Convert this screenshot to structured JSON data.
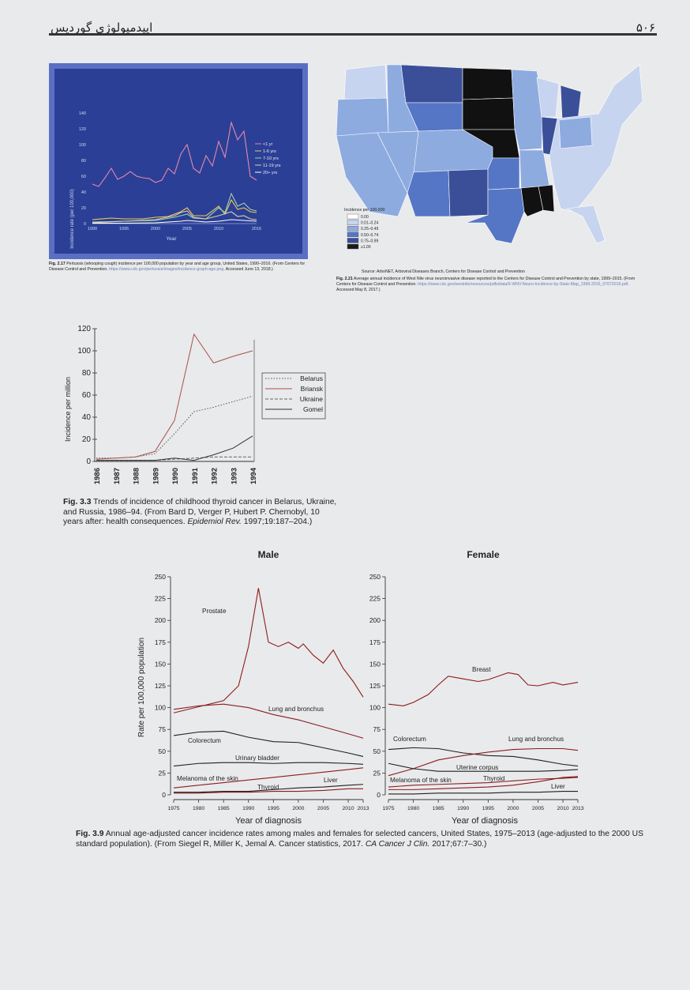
{
  "header": {
    "title": "اپیدمیولوژی گوردیس",
    "page_number": "۵۰۶"
  },
  "fig217": {
    "caption_label": "Fig. 2.17",
    "caption_text": "Pertussis (whooping cough) incidence per 100,000 population by year and age group, United States, 1990–2016. (From Centers for Disease Control and Prevention.",
    "caption_url": "https://www.cdc.gov/pertussis/images/incidence-graph-age.png",
    "caption_accessed": ". Accessed June 13, 2018.)",
    "ylabel": "Incidence rate (per 100,000)",
    "xlabel": "Year",
    "colors": {
      "bg": "#2b3f96",
      "frame": "#5a6fc4"
    },
    "chart_data": {
      "type": "line",
      "title": "",
      "xlabel": "Year",
      "ylabel": "Incidence rate (per 100,000)",
      "xlim": [
        1990,
        2016
      ],
      "ylim": [
        0,
        140
      ],
      "y_ticks": [
        0,
        20,
        40,
        60,
        80,
        100,
        120,
        140
      ],
      "x_ticks": [
        1990,
        1995,
        2000,
        2005,
        2010,
        2016
      ],
      "legend_position": "right",
      "series": [
        {
          "name": "<1 yr",
          "color": "#e28aa8",
          "x": [
            1990,
            1991,
            1992,
            1993,
            1994,
            1995,
            1996,
            1997,
            1998,
            1999,
            2000,
            2001,
            2002,
            2003,
            2004,
            2005,
            2006,
            2007,
            2008,
            2009,
            2010,
            2011,
            2012,
            2013,
            2014,
            2015,
            2016
          ],
          "y": [
            50,
            47,
            58,
            70,
            56,
            60,
            66,
            60,
            58,
            57,
            52,
            55,
            70,
            63,
            88,
            100,
            70,
            64,
            86,
            73,
            104,
            84,
            128,
            106,
            117,
            60,
            55
          ]
        },
        {
          "name": "1-6 yrs",
          "color": "#f0c85a",
          "x": [
            1990,
            1993,
            1995,
            1998,
            2000,
            2002,
            2004,
            2005,
            2006,
            2008,
            2010,
            2011,
            2012,
            2013,
            2014,
            2015,
            2016
          ],
          "y": [
            5,
            7,
            6,
            6,
            8,
            9,
            15,
            20,
            10,
            10,
            22,
            12,
            30,
            18,
            20,
            15,
            14
          ]
        },
        {
          "name": "7-10 yrs",
          "color": "#9ed3a8",
          "x": [
            1990,
            1995,
            2000,
            2003,
            2004,
            2005,
            2006,
            2008,
            2010,
            2011,
            2012,
            2013,
            2014,
            2015,
            2016
          ],
          "y": [
            2,
            3,
            4,
            8,
            10,
            12,
            7,
            6,
            20,
            14,
            38,
            22,
            26,
            18,
            16
          ]
        },
        {
          "name": "11-19 yrs",
          "color": "#d8d0a0",
          "x": [
            1990,
            1995,
            2000,
            2003,
            2004,
            2005,
            2006,
            2008,
            2010,
            2012,
            2013,
            2014,
            2015,
            2016
          ],
          "y": [
            1,
            3,
            5,
            10,
            14,
            16,
            8,
            6,
            10,
            15,
            9,
            10,
            6,
            5
          ]
        },
        {
          "name": "20+ yrs",
          "color": "#ffffff",
          "x": [
            1990,
            1995,
            2000,
            2004,
            2005,
            2008,
            2010,
            2012,
            2014,
            2016
          ],
          "y": [
            0.5,
            0.5,
            1,
            3,
            4,
            2,
            3,
            5,
            4,
            3
          ]
        }
      ]
    }
  },
  "fig221": {
    "legend_title": "Incidence per 100,000",
    "legend_items": [
      {
        "label": "0.00",
        "color": "#ffffff"
      },
      {
        "label": "0.01–0.24",
        "color": "#c6d4ef"
      },
      {
        "label": "0.25–0.49",
        "color": "#8eabe0"
      },
      {
        "label": "0.50–0.74",
        "color": "#5576c4"
      },
      {
        "label": "0.75–0.99",
        "color": "#3a4f98"
      },
      {
        "label": "≥1.00",
        "color": "#1a1a1a"
      }
    ],
    "source_line": "Source: ArboNET, Arboviral Diseases Branch, Centers for Disease Control and Prevention",
    "caption_label": "Fig. 2.21",
    "caption_text": "Average annual incidence of West Nile virus neuroinvasive disease reported to the Centers for Disease Control and Prevention by state, 1999–2015. (From Centers for Disease Control and Prevention.",
    "caption_url": "https://www.cdc.gov/westnile/resources/pdfs/data/6-WNV-Neuro-Incidence-by-State-Map_1999-2015_07072016.pdf",
    "caption_accessed": ". Accessed May 8, 2017.)"
  },
  "fig33": {
    "ylabel": "Incidence per million",
    "caption_label": "Fig. 3.3",
    "caption_text": "Trends of incidence of childhood thyroid cancer in Belarus, Ukraine, and Russia, 1986–94. (From Bard D, Verger P, Hubert P. Chernobyl, 10 years after: health consequences.",
    "caption_journal": "Epidemiol Rev.",
    "caption_ref": "1997;19:187–204.)",
    "chart_data": {
      "type": "line",
      "title": "",
      "xlabel": "",
      "ylabel": "Incidence per million",
      "categories": [
        "1986",
        "1987",
        "1988",
        "1989",
        "1990",
        "1991",
        "1992",
        "1993",
        "1994"
      ],
      "ylim": [
        0,
        120
      ],
      "y_ticks": [
        0,
        20,
        40,
        60,
        80,
        100,
        120
      ],
      "legend_position": "right",
      "series": [
        {
          "name": "Belarus",
          "style": "dotted",
          "values": [
            3,
            3,
            4,
            7,
            25,
            45,
            49,
            54,
            59
          ]
        },
        {
          "name": "Briansk",
          "style": "solid-brown",
          "values": [
            2,
            3,
            4,
            9,
            37,
            115,
            89,
            95,
            100
          ]
        },
        {
          "name": "Ukraine",
          "style": "dashed",
          "values": [
            1,
            1,
            1,
            1,
            2,
            3,
            4,
            4,
            4
          ]
        },
        {
          "name": "Gomel",
          "style": "solid",
          "values": [
            1,
            1,
            1,
            1,
            3,
            1,
            6,
            12,
            23
          ]
        }
      ]
    }
  },
  "fig39": {
    "ylabel": "Rate per 100,000 population",
    "xlabel_male": "Year of diagnosis",
    "xlabel_female": "Year of diagnosis",
    "caption_label": "Fig. 3.9",
    "caption_text": "Annual age-adjusted cancer incidence rates among males and females for selected cancers, United States, 1975–2013 (age-adjusted to the 2000 US standard population). (From Siegel R, Miller K, Jemal A. Cancer statistics, 2017.",
    "caption_journal": "CA Cancer J Clin.",
    "caption_ref": "2017;67:7–30.)",
    "chart_data": [
      {
        "type": "line",
        "title": "Male",
        "xlabel": "Year of diagnosis",
        "ylabel": "Rate per 100,000 population",
        "xlim": [
          1975,
          2013
        ],
        "ylim": [
          0,
          250
        ],
        "y_ticks": [
          0,
          25,
          50,
          75,
          100,
          125,
          150,
          175,
          200,
          225,
          250
        ],
        "x_ticks": [
          1975,
          1980,
          1985,
          1990,
          1995,
          2000,
          2005,
          2010,
          2013
        ],
        "series": [
          {
            "name": "Prostate",
            "color": "#8b1c1c",
            "x": [
              1975,
              1980,
              1985,
              1988,
              1990,
              1992,
              1994,
              1996,
              1998,
              2000,
              2001,
              2003,
              2005,
              2007,
              2009,
              2011,
              2013
            ],
            "y": [
              94,
              101,
              108,
              125,
              170,
              237,
              175,
              170,
              175,
              168,
              173,
              160,
              151,
              166,
              145,
              130,
              112
            ]
          },
          {
            "name": "Lung and bronchus",
            "color": "#8b1c1c",
            "x": [
              1975,
              1980,
              1985,
              1990,
              1995,
              2000,
              2005,
              2010,
              2013
            ],
            "y": [
              98,
              102,
              104,
              100,
              92,
              86,
              78,
              70,
              65
            ]
          },
          {
            "name": "Colorectum",
            "color": "#1f1f1f",
            "x": [
              1975,
              1980,
              1985,
              1990,
              1995,
              2000,
              2005,
              2010,
              2013
            ],
            "y": [
              68,
              72,
              73,
              66,
              61,
              60,
              54,
              48,
              44
            ]
          },
          {
            "name": "Urinary bladder",
            "color": "#1f1f1f",
            "x": [
              1975,
              1980,
              1985,
              1990,
              1995,
              2000,
              2005,
              2010,
              2013
            ],
            "y": [
              33,
              36,
              37,
              37,
              36,
              37,
              37,
              36,
              35
            ]
          },
          {
            "name": "Melanoma of the skin",
            "color": "#8b1c1c",
            "x": [
              1975,
              1980,
              1985,
              1990,
              1995,
              2000,
              2005,
              2010,
              2013
            ],
            "y": [
              8,
              11,
              14,
              17,
              20,
              23,
              26,
              29,
              31
            ]
          },
          {
            "name": "Liver",
            "color": "#1f1f1f",
            "x": [
              1975,
              1980,
              1985,
              1990,
              1995,
              2000,
              2005,
              2010,
              2013
            ],
            "y": [
              3,
              3,
              4,
              4,
              6,
              8,
              9,
              11,
              12
            ]
          },
          {
            "name": "Thyroid",
            "color": "#8b1c1c",
            "x": [
              1975,
              1980,
              1985,
              1990,
              1995,
              2000,
              2005,
              2010,
              2013
            ],
            "y": [
              2,
              2,
              3,
              3,
              4,
              4,
              5,
              7,
              7
            ]
          }
        ]
      },
      {
        "type": "line",
        "title": "Female",
        "xlabel": "Year of diagnosis",
        "ylabel": "",
        "xlim": [
          1975,
          2013
        ],
        "ylim": [
          0,
          250
        ],
        "y_ticks": [
          0,
          25,
          50,
          75,
          100,
          125,
          150,
          175,
          200,
          225,
          250
        ],
        "x_ticks": [
          1975,
          1980,
          1985,
          1990,
          1995,
          2000,
          2005,
          2010,
          2013
        ],
        "series": [
          {
            "name": "Breast",
            "color": "#8b1c1c",
            "x": [
              1975,
              1978,
              1980,
              1983,
              1985,
              1987,
              1990,
              1993,
              1995,
              1999,
              2001,
              2003,
              2005,
              2008,
              2010,
              2013
            ],
            "y": [
              104,
              102,
              106,
              115,
              126,
              136,
              133,
              130,
              132,
              140,
              138,
              126,
              125,
              129,
              126,
              129
            ]
          },
          {
            "name": "Colorectum",
            "color": "#1f1f1f",
            "x": [
              1975,
              1980,
              1985,
              1990,
              1995,
              2000,
              2005,
              2010,
              2013
            ],
            "y": [
              52,
              54,
              53,
              48,
              45,
              44,
              40,
              35,
              33
            ]
          },
          {
            "name": "Lung and bronchus",
            "color": "#8b1c1c",
            "x": [
              1975,
              1980,
              1985,
              1990,
              1995,
              2000,
              2005,
              2010,
              2013
            ],
            "y": [
              22,
              30,
              40,
              45,
              49,
              52,
              53,
              53,
              51
            ]
          },
          {
            "name": "Uterine corpus",
            "color": "#1f1f1f",
            "x": [
              1975,
              1980,
              1985,
              1990,
              1995,
              2000,
              2005,
              2010,
              2013
            ],
            "y": [
              36,
              30,
              27,
              27,
              27,
              27,
              27,
              28,
              29
            ]
          },
          {
            "name": "Melanoma of the skin",
            "color": "#8b1c1c",
            "x": [
              1975,
              1980,
              1985,
              1990,
              1995,
              2000,
              2005,
              2010,
              2013
            ],
            "y": [
              9,
              11,
              12,
              13,
              14,
              16,
              18,
              19,
              20
            ]
          },
          {
            "name": "Thyroid",
            "color": "#8b1c1c",
            "x": [
              1975,
              1980,
              1985,
              1990,
              1995,
              2000,
              2005,
              2010,
              2013
            ],
            "y": [
              6,
              6,
              7,
              8,
              9,
              11,
              15,
              20,
              21
            ]
          },
          {
            "name": "Liver",
            "color": "#1f1f1f",
            "x": [
              1975,
              1980,
              1985,
              1990,
              1995,
              2000,
              2005,
              2010,
              2013
            ],
            "y": [
              1,
              1,
              2,
              2,
              2,
              3,
              3,
              4,
              4
            ]
          }
        ]
      }
    ]
  }
}
